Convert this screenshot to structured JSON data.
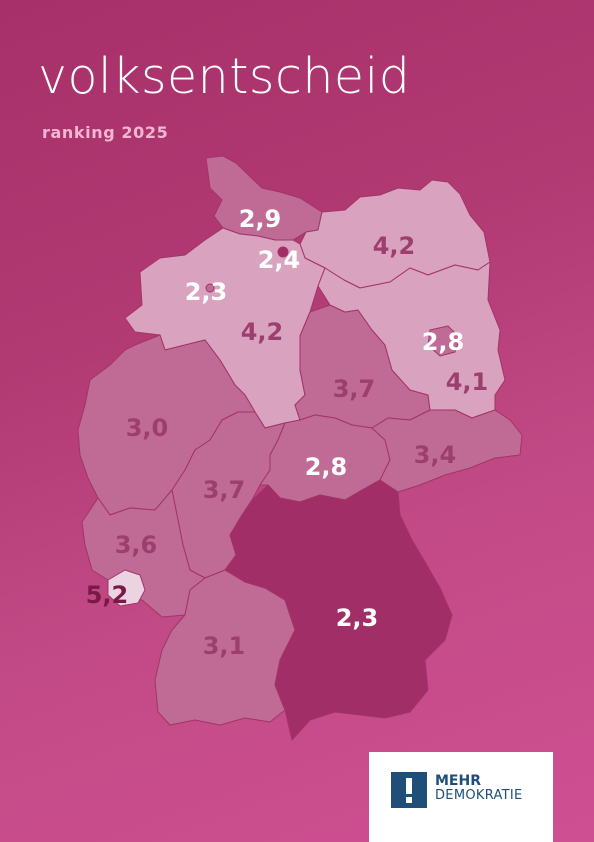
{
  "title": "volksentscheid",
  "subtitle": "ranking 2025",
  "colors": {
    "title": "#ffffff",
    "subtitle": "#f2b6d3",
    "light": "#d9a2bf",
    "mid": "#c06b96",
    "dark": "#a12e66",
    "white_region": "#ecd3e1",
    "label_white": "#ffffff",
    "label_dark": "#9c3f6e",
    "label_darkest": "#7a1846",
    "logo_blue": "#1f4e79"
  },
  "regions": [
    {
      "name": "Schleswig-Holstein",
      "value": "2,9",
      "shade": "mid"
    },
    {
      "name": "Hamburg",
      "value": "2,4",
      "shade": "dark"
    },
    {
      "name": "Mecklenburg-Vorpommern",
      "value": "4,2",
      "shade": "light"
    },
    {
      "name": "Bremen",
      "value": "2,3",
      "shade": "mid"
    },
    {
      "name": "Niedersachsen",
      "value": "4,2",
      "shade": "light"
    },
    {
      "name": "Berlin",
      "value": "2,8",
      "shade": "mid"
    },
    {
      "name": "Brandenburg",
      "value": "4,1",
      "shade": "light"
    },
    {
      "name": "Sachsen-Anhalt",
      "value": "3,7",
      "shade": "mid"
    },
    {
      "name": "Nordrhein-Westfalen",
      "value": "3,0",
      "shade": "mid"
    },
    {
      "name": "Hessen",
      "value": "3,7",
      "shade": "mid"
    },
    {
      "name": "Thüringen",
      "value": "2,8",
      "shade": "mid"
    },
    {
      "name": "Sachsen",
      "value": "3,4",
      "shade": "mid"
    },
    {
      "name": "Rheinland-Pfalz",
      "value": "3,6",
      "shade": "mid"
    },
    {
      "name": "Saarland",
      "value": "5,2",
      "shade": "white"
    },
    {
      "name": "Baden-Württemberg",
      "value": "3,1",
      "shade": "mid"
    },
    {
      "name": "Bayern",
      "value": "2,3",
      "shade": "dark"
    }
  ],
  "logo": {
    "line1": "MEHR",
    "line2": "DEMOKRATIE"
  }
}
